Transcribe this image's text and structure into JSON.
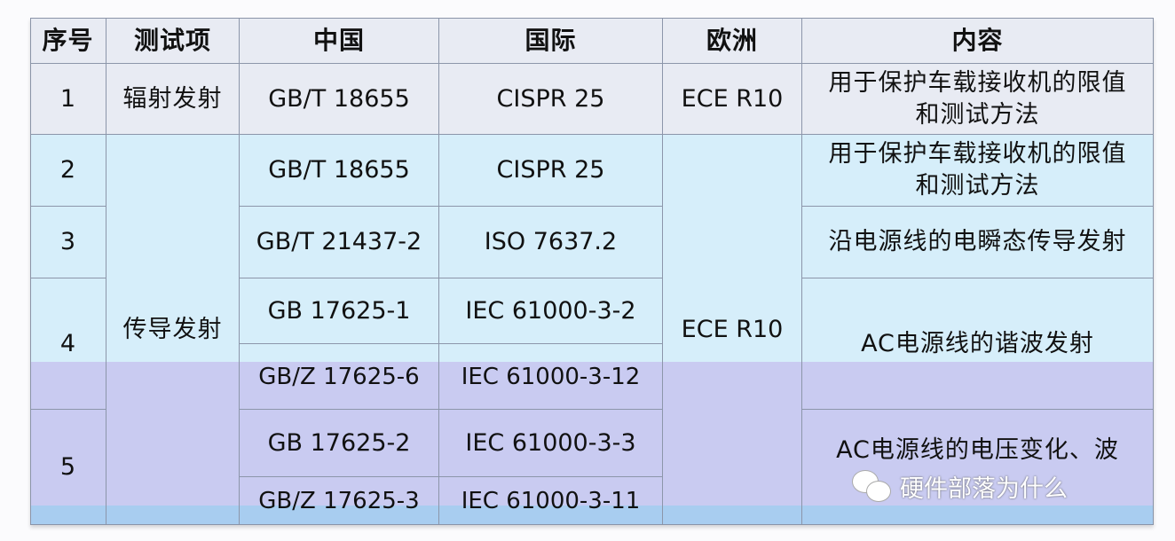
{
  "table": {
    "headers": [
      "序号",
      "测试项",
      "中国",
      "国际",
      "欧洲",
      "内容"
    ],
    "rows": {
      "r1": {
        "seq": "1",
        "item": "辐射发射",
        "china": "GB/T 18655",
        "intl": "CISPR 25",
        "europe": "ECE R10",
        "content": "用于保护车载接收机的限值和测试方法"
      },
      "r2": {
        "seq": "2",
        "china": "GB/T 18655",
        "intl": "CISPR 25",
        "content": "用于保护车载接收机的限值和测试方法"
      },
      "r3": {
        "seq": "3",
        "china": "GB/T 21437-2",
        "intl": "ISO 7637.2",
        "content": "沿电源线的电瞬态传导发射"
      },
      "r4": {
        "seq": "4",
        "china_a": "GB 17625-1",
        "intl_a": "IEC 61000-3-2",
        "china_b": "GB/Z 17625-6",
        "intl_b": "IEC 61000-3-12",
        "content": "AC电源线的谐波发射"
      },
      "r5": {
        "seq": "5",
        "china_a": "GB 17625-2",
        "intl_a": "IEC 61000-3-3",
        "china_b": "GB/Z 17625-3",
        "intl_b": "IEC 61000-3-11",
        "content": "AC电源线的电压变化、波"
      },
      "conducted": {
        "item": "传导发射",
        "europe": "ECE R10"
      }
    }
  },
  "watermark": {
    "icon": "wechat-icon",
    "text": "硬件部落为什么"
  },
  "colors": {
    "header": "#e8ebf3",
    "cyan_band": "#d6eefa",
    "lavender_band": "#c9cbf1",
    "bottom_band": "#a8cdf0",
    "grid": "#8c96aa"
  }
}
